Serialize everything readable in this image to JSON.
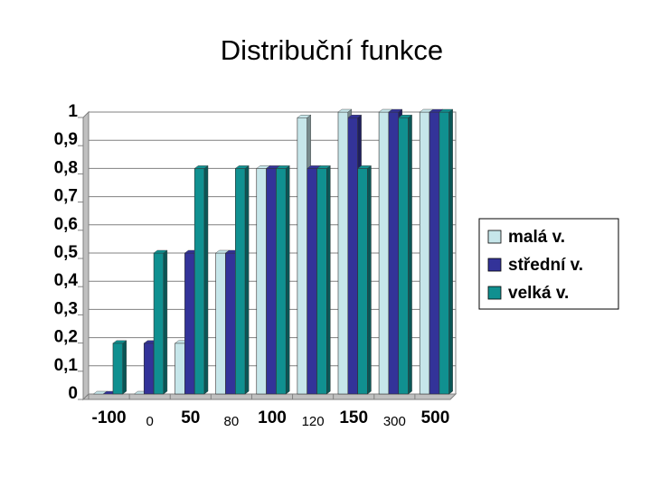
{
  "chart_data": {
    "type": "bar",
    "title": "Distribuční funkce",
    "categories": [
      "-100",
      "0",
      "50",
      "80",
      "100",
      "120",
      "150",
      "300",
      "500"
    ],
    "series": [
      {
        "name": "malá v.",
        "color": "#c6e6ea",
        "values": [
          0,
          0,
          0.18,
          0.5,
          0.8,
          0.98,
          1,
          1,
          1
        ]
      },
      {
        "name": "střední v.",
        "color": "#333399",
        "values": [
          0,
          0.18,
          0.5,
          0.5,
          0.8,
          0.8,
          0.98,
          1,
          1
        ]
      },
      {
        "name": "velká v.",
        "color": "#109090",
        "values": [
          0.18,
          0.5,
          0.8,
          0.8,
          0.8,
          0.8,
          0.8,
          0.98,
          1
        ]
      }
    ],
    "ylim": [
      0,
      1
    ],
    "yticks": [
      0,
      {
        "value": 0.1,
        "label": "0,1"
      },
      {
        "value": 0.2,
        "label": "0,2"
      },
      {
        "value": 0.3,
        "label": "0,3"
      },
      {
        "value": 0.4,
        "label": "0,4"
      },
      {
        "value": 0.5,
        "label": "0,5"
      },
      {
        "value": 0.6,
        "label": "0,6"
      },
      {
        "value": 0.7,
        "label": "0,7"
      },
      {
        "value": 0.8,
        "label": "0,8"
      },
      {
        "value": 0.9,
        "label": "0,9"
      },
      1
    ],
    "grid": true,
    "legend": "right"
  }
}
